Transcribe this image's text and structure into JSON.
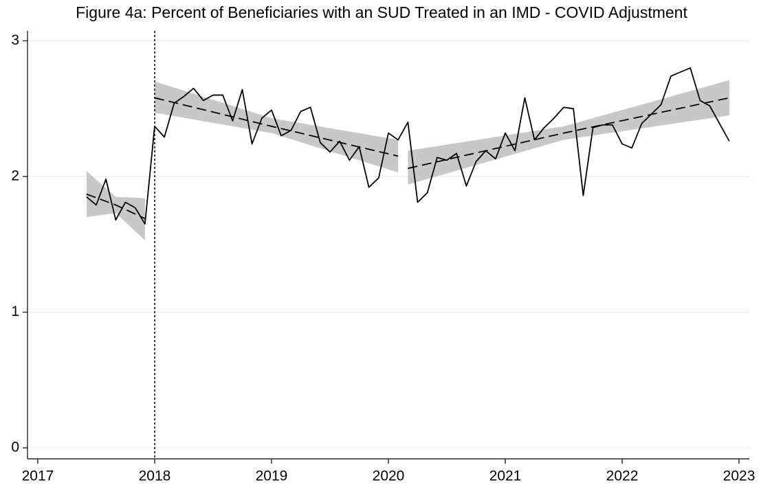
{
  "chart_data": {
    "type": "line",
    "title": "Figure 4a: Percent of Beneficiaries with an SUD Treated in an IMD - COVID Adjustment",
    "x": [
      2017.417,
      2017.5,
      2017.583,
      2017.667,
      2017.75,
      2017.833,
      2017.917,
      2018.0,
      2018.083,
      2018.167,
      2018.25,
      2018.333,
      2018.417,
      2018.5,
      2018.583,
      2018.667,
      2018.75,
      2018.833,
      2018.917,
      2019.0,
      2019.083,
      2019.167,
      2019.25,
      2019.333,
      2019.417,
      2019.5,
      2019.583,
      2019.667,
      2019.75,
      2019.833,
      2019.917,
      2020.0,
      2020.083,
      2020.167,
      2020.25,
      2020.333,
      2020.417,
      2020.5,
      2020.583,
      2020.667,
      2020.75,
      2020.833,
      2020.917,
      2021.0,
      2021.083,
      2021.167,
      2021.25,
      2021.333,
      2021.417,
      2021.5,
      2021.583,
      2021.667,
      2021.75,
      2021.833,
      2021.917,
      2022.0,
      2022.083,
      2022.167,
      2022.25,
      2022.333,
      2022.417,
      2022.5,
      2022.583,
      2022.667,
      2022.75,
      2022.833,
      2022.917
    ],
    "values": [
      1.85,
      1.79,
      1.98,
      1.68,
      1.81,
      1.77,
      1.65,
      2.37,
      2.29,
      2.54,
      2.59,
      2.65,
      2.56,
      2.6,
      2.6,
      2.41,
      2.64,
      2.24,
      2.43,
      2.49,
      2.3,
      2.34,
      2.48,
      2.51,
      2.25,
      2.18,
      2.26,
      2.12,
      2.22,
      1.92,
      1.99,
      2.32,
      2.27,
      2.4,
      1.81,
      1.88,
      2.14,
      2.12,
      2.17,
      1.93,
      2.11,
      2.19,
      2.13,
      2.32,
      2.19,
      2.58,
      2.27,
      2.36,
      2.43,
      2.51,
      2.5,
      1.86,
      2.36,
      2.38,
      2.38,
      2.24,
      2.21,
      2.39,
      2.46,
      2.53,
      2.74,
      2.77,
      2.8,
      2.56,
      2.52,
      2.39,
      2.26
    ],
    "color": "#000000",
    "fits": [
      {
        "x": [
          2017.417,
          2017.667,
          2017.917
        ],
        "values": [
          1.87,
          1.79,
          1.69
        ],
        "lower": [
          1.7,
          1.73,
          1.53
        ],
        "upper": [
          2.04,
          1.85,
          1.84
        ]
      },
      {
        "x": [
          2018.0,
          2019.0,
          2020.083
        ],
        "values": [
          2.58,
          2.37,
          2.15
        ],
        "lower": [
          2.47,
          2.32,
          2.03
        ],
        "upper": [
          2.7,
          2.43,
          2.27
        ]
      },
      {
        "x": [
          2020.167,
          2021.5,
          2022.917
        ],
        "values": [
          2.06,
          2.32,
          2.58
        ],
        "lower": [
          1.94,
          2.27,
          2.45
        ],
        "upper": [
          2.19,
          2.37,
          2.71
        ]
      }
    ],
    "band_color": "#c8c8c8",
    "vline": 2018.0,
    "xlim": [
      2016.912,
      2023.088
    ],
    "xticks": [
      2017,
      2018,
      2019,
      2020,
      2021,
      2022,
      2023
    ],
    "ylim": [
      -0.081,
      3.073
    ],
    "yticks": [
      0,
      1,
      2,
      3
    ],
    "grid": true
  }
}
